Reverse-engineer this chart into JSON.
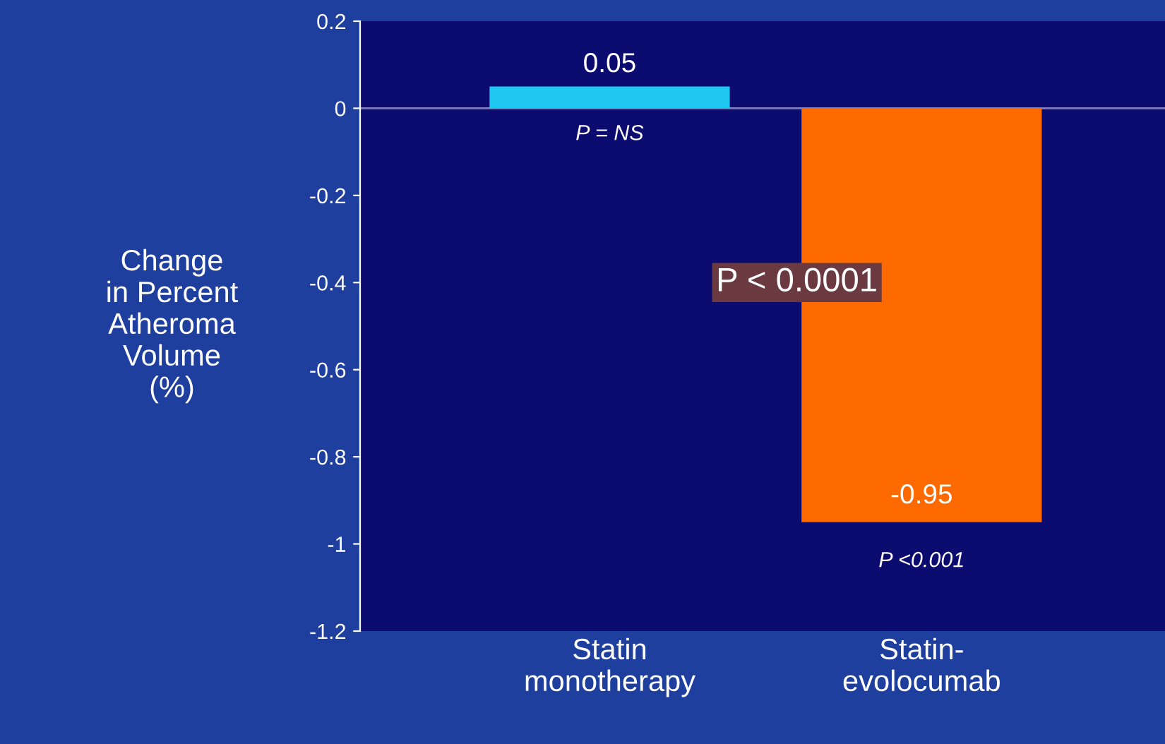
{
  "chart_data": {
    "type": "bar",
    "categories": [
      "Statin\nmonotherapy",
      "Statin-\nevolocumab"
    ],
    "values": [
      0.05,
      -0.95
    ],
    "colors": [
      "#1ec8f0",
      "#ff6a00"
    ],
    "ylabel": "Change\nin Percent\nAtheroma\nVolume\n(%)",
    "ylim": [
      -1.2,
      0.2
    ],
    "yticks": [
      0.2,
      0,
      -0.2,
      -0.4,
      -0.6,
      -0.8,
      -1,
      -1.2
    ],
    "data_labels": true,
    "grid": false,
    "ref_lines": [
      {
        "axis": "y",
        "value": 0,
        "color": "#8080c0"
      }
    ],
    "annotations": [
      "P = NS",
      "P < 0.0001",
      "P <0.001"
    ]
  }
}
